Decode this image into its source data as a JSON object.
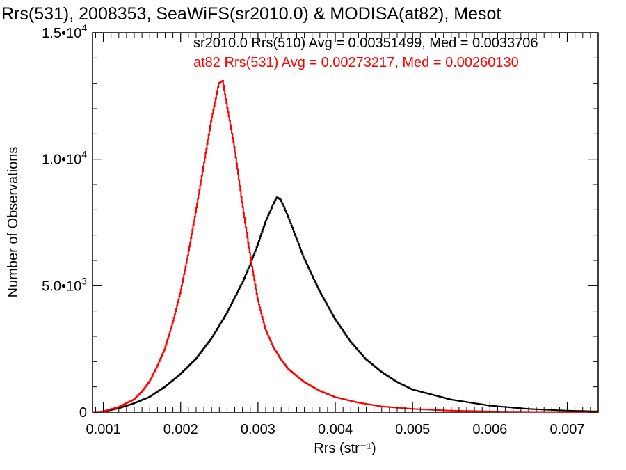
{
  "chart_data": {
    "type": "line",
    "title": "Rrs(531), 2008353, SeaWiFS(sr2010.0) & MODISA(at82), Mesot",
    "xlabel": "Rrs (str⁻¹)",
    "ylabel": "Number of Observations",
    "xlim": [
      0.00086,
      0.0074
    ],
    "ylim": [
      0,
      15000
    ],
    "x_ticks": [
      "0.001",
      "0.002",
      "0.003",
      "0.004",
      "0.005",
      "0.006",
      "0.007"
    ],
    "x_tick_values": [
      0.001,
      0.002,
      0.003,
      0.004,
      0.005,
      0.006,
      0.007
    ],
    "y_ticks": [
      {
        "value": 0,
        "mantissa": "0",
        "exponent": ""
      },
      {
        "value": 5000,
        "mantissa": "5.0•10",
        "exponent": "3"
      },
      {
        "value": 10000,
        "mantissa": "1.0•10",
        "exponent": "4"
      },
      {
        "value": 15000,
        "mantissa": "1.5•10",
        "exponent": "4"
      }
    ],
    "grid": false,
    "legend_position": "top-right",
    "series": [
      {
        "name": "sr2010.0 Rrs(510) Avg = 0.00351499, Med = 0.0033706",
        "color": "#000000",
        "x": [
          0.00086,
          0.001,
          0.0012,
          0.0014,
          0.0016,
          0.0018,
          0.002,
          0.0022,
          0.0024,
          0.0026,
          0.0028,
          0.0029,
          0.003,
          0.0031,
          0.0032,
          0.00325,
          0.0033,
          0.0034,
          0.0035,
          0.0036,
          0.0038,
          0.004,
          0.0042,
          0.0044,
          0.0046,
          0.0048,
          0.005,
          0.0055,
          0.006,
          0.0065,
          0.007,
          0.0074
        ],
        "values": [
          0,
          20,
          150,
          350,
          600,
          1000,
          1500,
          2100,
          2900,
          3900,
          5100,
          5800,
          6600,
          7500,
          8200,
          8500,
          8400,
          7700,
          6900,
          6100,
          4800,
          3700,
          2800,
          2100,
          1600,
          1200,
          900,
          500,
          260,
          130,
          60,
          30
        ]
      },
      {
        "name": "at82 Rrs(531) Avg = 0.00273217, Med = 0.00260130",
        "color": "#ff0000",
        "x": [
          0.00086,
          0.001,
          0.0012,
          0.0014,
          0.0015,
          0.0016,
          0.0017,
          0.0018,
          0.0019,
          0.002,
          0.0021,
          0.0022,
          0.0023,
          0.0024,
          0.0025,
          0.00255,
          0.0026,
          0.0027,
          0.0028,
          0.0029,
          0.003,
          0.0031,
          0.0032,
          0.0033,
          0.0034,
          0.0036,
          0.0038,
          0.004,
          0.0043,
          0.0046,
          0.005,
          0.0055,
          0.006,
          0.0065,
          0.007,
          0.0074
        ],
        "values": [
          0,
          30,
          200,
          500,
          800,
          1200,
          1800,
          2500,
          3500,
          4700,
          6200,
          7900,
          9700,
          11500,
          13000,
          13100,
          12200,
          10500,
          8300,
          6300,
          4500,
          3300,
          2600,
          2100,
          1700,
          1200,
          850,
          600,
          380,
          230,
          130,
          60,
          30,
          15,
          8,
          4
        ]
      }
    ]
  }
}
